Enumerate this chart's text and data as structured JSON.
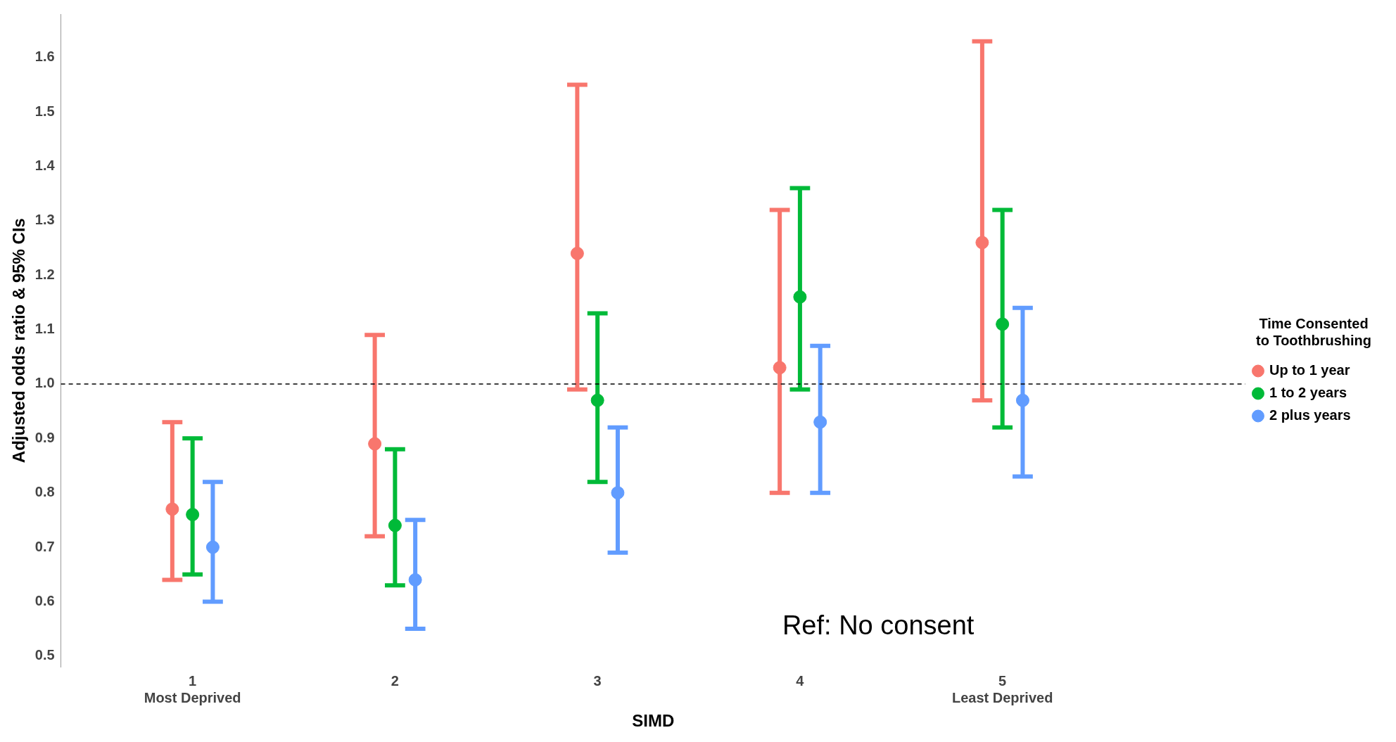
{
  "chart_data": {
    "type": "scatter",
    "xlabel": "SIMD",
    "ylabel": "Adjusted odds ratio & 95% CIs",
    "legend_title": "Time Consented\nto Toothbrushing",
    "categories": [
      "1\nMost Deprived",
      "2",
      "3",
      "4",
      "5\nLeast Deprived"
    ],
    "series": [
      {
        "name": "Up to 1 year",
        "color": "#f8766d",
        "values": [
          0.77,
          0.89,
          1.24,
          1.03,
          1.26
        ],
        "errors": [
          [
            0.64,
            0.93
          ],
          [
            0.72,
            1.09
          ],
          [
            0.99,
            1.55
          ],
          [
            0.8,
            1.32
          ],
          [
            0.97,
            1.63
          ]
        ]
      },
      {
        "name": "1 to 2 years",
        "color": "#00ba38",
        "values": [
          0.76,
          0.74,
          0.97,
          1.16,
          1.11
        ],
        "errors": [
          [
            0.65,
            0.9
          ],
          [
            0.63,
            0.88
          ],
          [
            0.82,
            1.13
          ],
          [
            0.99,
            1.36
          ],
          [
            0.92,
            1.32
          ]
        ]
      },
      {
        "name": "2 plus years",
        "color": "#619cff",
        "values": [
          0.7,
          0.64,
          0.8,
          0.93,
          0.97
        ],
        "errors": [
          [
            0.6,
            0.82
          ],
          [
            0.55,
            0.75
          ],
          [
            0.69,
            0.92
          ],
          [
            0.8,
            1.07
          ],
          [
            0.83,
            1.14
          ]
        ]
      }
    ],
    "ylim": [
      0.48,
      1.68
    ],
    "yticks": [
      {
        "value": 0.5,
        "label": "0.5"
      },
      {
        "value": 0.6,
        "label": "0.6"
      },
      {
        "value": 0.7,
        "label": "0.7"
      },
      {
        "value": 0.8,
        "label": "0.8"
      },
      {
        "value": 0.9,
        "label": "0.9"
      },
      {
        "value": 1,
        "label": "1.0"
      },
      {
        "value": 1.1,
        "label": "1.1"
      },
      {
        "value": 1.2,
        "label": "1.2"
      },
      {
        "value": 1.3,
        "label": "1.3"
      },
      {
        "value": 1.4,
        "label": "1.4"
      },
      {
        "value": 1.5,
        "label": "1.5"
      },
      {
        "value": 1.6,
        "label": "1.6"
      }
    ],
    "ref_lines": [
      {
        "axis": "y",
        "value": 1,
        "line_style": "dashed",
        "color": "#000000"
      }
    ],
    "annotations": [
      "Ref: No consent"
    ],
    "grid": false,
    "legend": "right",
    "marker": "circle"
  }
}
